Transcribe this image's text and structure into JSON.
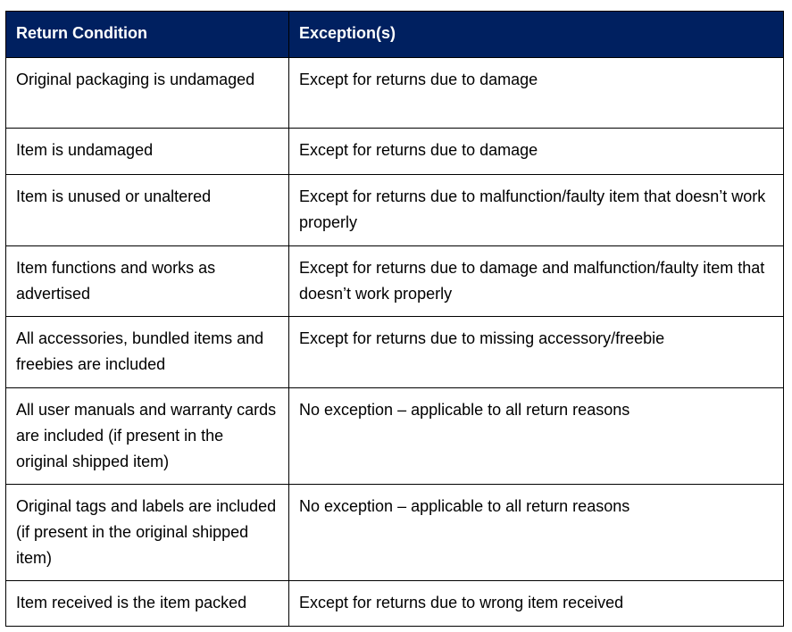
{
  "header": {
    "color": "#002060",
    "columns": [
      "Return Condition",
      "Exception(s)"
    ]
  },
  "rows": [
    {
      "condition": "Original packaging is undamaged",
      "exception": "Except for returns due to damage"
    },
    {
      "condition": "Item is undamaged",
      "exception": "Except for returns due to damage"
    },
    {
      "condition": "Item is unused or unaltered",
      "exception": "Except for returns due to malfunction/faulty item that doesn’t work properly"
    },
    {
      "condition": "Item functions and works as advertised",
      "exception": "Except for returns due to damage and malfunction/faulty item that doesn’t work properly"
    },
    {
      "condition": "All accessories, bundled items and freebies are included",
      "exception": "Except for returns due to missing accessory/freebie"
    },
    {
      "condition": "All user manuals and warranty cards are included (if present in the original shipped item)",
      "exception": "No exception – applicable to all return reasons"
    },
    {
      "condition": "Original tags and labels are included (if present in the original shipped item)",
      "exception": "No exception – applicable to all return reasons"
    },
    {
      "condition": "Item received is the item packed",
      "exception": "Except for returns due to wrong item received"
    }
  ]
}
